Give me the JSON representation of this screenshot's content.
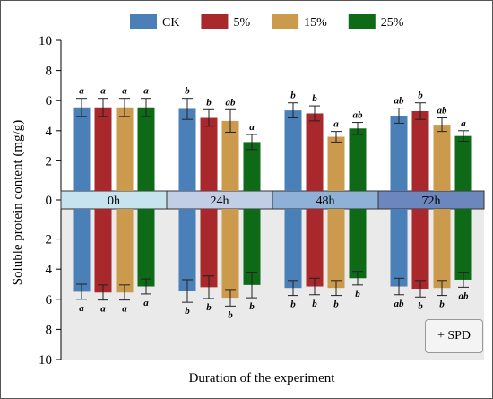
{
  "chart_data": {
    "type": "bar",
    "layout": "mirrored",
    "xlabel": "Duration of the experiment",
    "ylabel": "Soluble protein content (mg/g)",
    "ylim": [
      0,
      10
    ],
    "yticks": [
      0,
      2,
      4,
      6,
      8,
      10
    ],
    "grid": false,
    "legend_position": "top",
    "categories": [
      "0h",
      "24h",
      "48h",
      "72h"
    ],
    "series": [
      {
        "name": "CK",
        "color": "#4a7fb8"
      },
      {
        "name": "5%",
        "color": "#a8282b"
      },
      {
        "name": "15%",
        "color": "#cc9a4c"
      },
      {
        "name": "25%",
        "color": "#0f6a17"
      }
    ],
    "top": {
      "values": [
        [
          5.55,
          5.55,
          5.55,
          5.55
        ],
        [
          5.45,
          4.85,
          4.65,
          3.25
        ],
        [
          5.35,
          5.15,
          3.6,
          4.15
        ],
        [
          5.0,
          5.3,
          4.4,
          3.65
        ]
      ],
      "errors": [
        [
          0.6,
          0.6,
          0.6,
          0.6
        ],
        [
          0.7,
          0.55,
          0.75,
          0.5
        ],
        [
          0.5,
          0.5,
          0.35,
          0.4
        ],
        [
          0.5,
          0.55,
          0.45,
          0.35
        ]
      ],
      "labels": [
        [
          "a",
          "a",
          "a",
          "a"
        ],
        [
          "b",
          "b",
          "ab",
          "a"
        ],
        [
          "b",
          "b",
          "a",
          "ab"
        ],
        [
          "ab",
          "b",
          "ab",
          "a"
        ]
      ]
    },
    "bottom": {
      "label": "+ SPD",
      "values": [
        [
          5.5,
          5.55,
          5.55,
          5.15
        ],
        [
          5.45,
          5.2,
          5.9,
          5.05
        ],
        [
          5.25,
          5.15,
          5.25,
          4.6
        ],
        [
          5.15,
          5.3,
          5.25,
          4.7
        ]
      ],
      "errors": [
        [
          0.5,
          0.5,
          0.5,
          0.5
        ],
        [
          0.75,
          0.75,
          0.55,
          0.85
        ],
        [
          0.5,
          0.55,
          0.5,
          0.45
        ],
        [
          0.55,
          0.55,
          0.5,
          0.5
        ]
      ],
      "labels": [
        [
          "a",
          "a",
          "a",
          "a"
        ],
        [
          "b",
          "b",
          "b",
          "b"
        ],
        [
          "b",
          "b",
          "b",
          "b"
        ],
        [
          "ab",
          "b",
          "b",
          "ab"
        ]
      ]
    },
    "band_colors": [
      "#c7e3ee",
      "#c2cde6",
      "#8fb1d7",
      "#6c87bd"
    ],
    "bottom_background": "#eaeaea"
  }
}
